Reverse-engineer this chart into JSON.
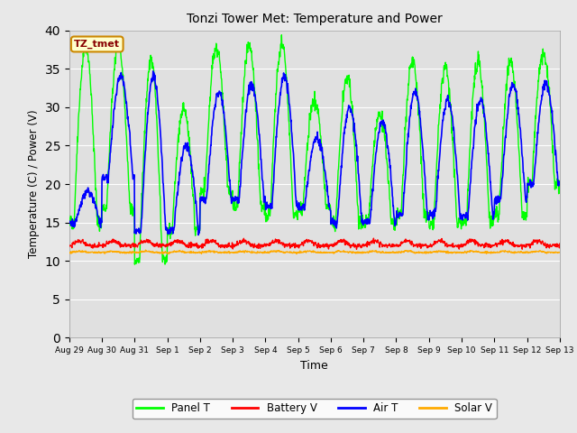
{
  "title": "Tonzi Tower Met: Temperature and Power",
  "xlabel": "Time",
  "ylabel": "Temperature (C) / Power (V)",
  "ylim": [
    0,
    40
  ],
  "yticks": [
    0,
    5,
    10,
    15,
    20,
    25,
    30,
    35,
    40
  ],
  "fig_bg_color": "#e8e8e8",
  "plot_bg_color": "#e0e0e0",
  "annotation_text": "TZ_tmet",
  "annotation_bg": "#ffffcc",
  "annotation_border": "#cc8800",
  "annotation_text_color": "#880000",
  "colors": {
    "panel_t": "#00ff00",
    "battery_v": "#ff0000",
    "air_t": "#0000ff",
    "solar_v": "#ffaa00"
  },
  "legend": [
    "Panel T",
    "Battery V",
    "Air T",
    "Solar V"
  ],
  "n_days": 15,
  "panel_t_peaks": [
    38,
    38,
    36,
    30,
    38,
    38,
    38,
    31,
    34,
    29,
    36,
    35,
    36,
    36,
    37
  ],
  "panel_t_mins": [
    15,
    17,
    10,
    14,
    19,
    17,
    16,
    17,
    15,
    15,
    16,
    15,
    15,
    16,
    20
  ],
  "air_t_peaks": [
    19,
    34,
    34,
    25,
    32,
    33,
    34,
    26,
    30,
    28,
    32,
    31,
    31,
    33,
    33
  ],
  "air_t_mins": [
    15,
    21,
    14,
    14,
    18,
    18,
    17,
    17,
    15,
    15,
    16,
    16,
    16,
    18,
    20
  ],
  "battery_v_base": 12.0,
  "solar_v_base": 11.1,
  "samples_per_day": 96,
  "tick_labels": [
    "Aug 29",
    "Aug 30",
    "Aug 31",
    "Sep 1",
    "Sep 2",
    "Sep 3",
    "Sep 4",
    "Sep 5",
    "Sep 6",
    "Sep 7",
    "Sep 8",
    "Sep 9",
    "Sep 10",
    "Sep 11",
    "Sep 12",
    "Sep 13"
  ]
}
